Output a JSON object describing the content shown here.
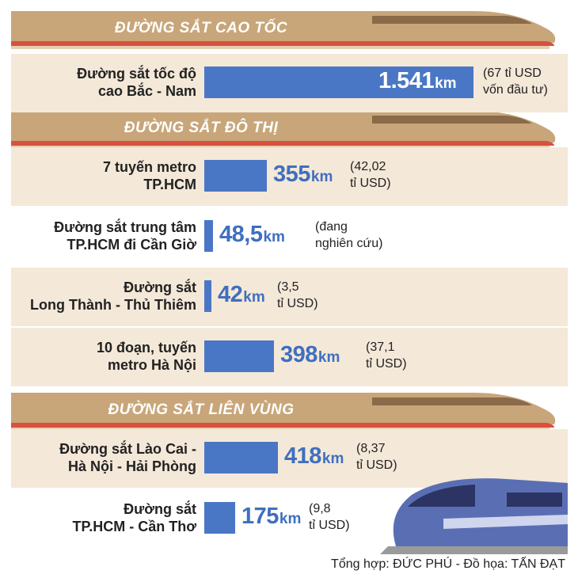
{
  "sections": [
    {
      "title": "ĐƯỜNG SẮT CAO TỐC"
    },
    {
      "title": "ĐƯỜNG SẮT ĐÔ THỊ"
    },
    {
      "title": "ĐƯỜNG SẮT LIÊN VÙNG"
    }
  ],
  "credit": "Tổng hợp: ĐỨC PHÚ - Đồ họa: TẤN ĐẠT",
  "colors": {
    "bar": "#4a77c5",
    "band": "#c8a67a",
    "row_alt": "#f4e8d8",
    "stripe": "#d9503e"
  },
  "chart_data": {
    "type": "bar",
    "orientation": "horizontal",
    "unit": "km",
    "categories": [
      "Đường sắt tốc độ cao Bắc - Nam",
      "7 tuyến metro TP.HCM",
      "Đường sắt trung tâm TP.HCM đi Cần Giờ",
      "Đường sắt Long Thành - Thủ Thiêm",
      "10 đoạn, tuyến metro Hà Nội",
      "Đường sắt Lào Cai - Hà Nội - Hải Phòng",
      "Đường sắt TP.HCM - Cần Thơ"
    ],
    "values": [
      1541,
      355,
      48.5,
      42,
      398,
      418,
      175
    ],
    "value_labels": [
      "1.541",
      "355",
      "48,5",
      "42",
      "398",
      "418",
      "175"
    ],
    "label_lines": [
      [
        "Đường sắt tốc độ",
        "cao Bắc - Nam"
      ],
      [
        "7 tuyến metro",
        "TP.HCM"
      ],
      [
        "Đường sắt trung tâm",
        "TP.HCM đi Cần Giờ"
      ],
      [
        "Đường sắt",
        "Long Thành - Thủ Thiêm"
      ],
      [
        "10 đoạn, tuyến",
        "metro Hà Nội"
      ],
      [
        "Đường sắt Lào Cai -",
        "Hà Nội - Hải Phòng"
      ],
      [
        "Đường sắt",
        "TP.HCM - Cần Thơ"
      ]
    ],
    "notes": [
      [
        "(67 tỉ USD",
        "vốn đầu tư)"
      ],
      [
        "(42,02",
        "tỉ USD)"
      ],
      [
        "(đang",
        "nghiên cứu)"
      ],
      [
        "(3,5",
        "tỉ USD)"
      ],
      [
        "(37,1",
        "tỉ USD)"
      ],
      [
        "(8,37",
        "tỉ USD)"
      ],
      [
        "(9,8",
        "tỉ USD)"
      ]
    ],
    "section_of_row": [
      0,
      1,
      1,
      1,
      1,
      2,
      2
    ]
  }
}
